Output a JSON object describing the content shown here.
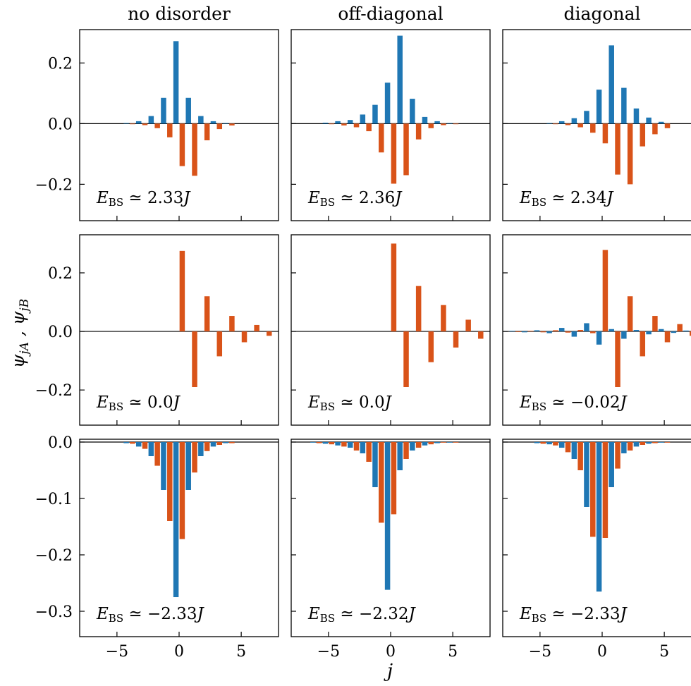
{
  "figure": {
    "ylabel": "ψ_jA , ψ_jB",
    "xlabel": "j",
    "column_titles": [
      "no disorder",
      "off-diagonal",
      "diagonal"
    ],
    "energy_prefix": "E",
    "energy_subscript": "BS",
    "energy_relation": "≃",
    "energy_unit": "J"
  },
  "colors": {
    "A": "#1f77b4",
    "B": "#d95319"
  },
  "chart_data": [
    {
      "type": "bar",
      "row": 0,
      "col": 0,
      "title": "no disorder",
      "energy": "2.33",
      "xlim": [
        -8,
        8
      ],
      "ylim": [
        -0.32,
        0.31
      ],
      "yticks": [
        "0.2",
        "0.0",
        "−0.2"
      ],
      "ytick_values": [
        0.2,
        0.0,
        -0.2
      ],
      "show_ytick_labels": true,
      "show_xtick_labels": false,
      "xticks": [
        -5,
        0,
        5
      ],
      "series": [
        {
          "name": "ψ_jA",
          "x": [
            -4,
            -3,
            -2,
            -1,
            0,
            1,
            2,
            3,
            4
          ],
          "values": [
            0.002,
            0.008,
            0.025,
            0.085,
            0.272,
            0.085,
            0.025,
            0.008,
            0.002
          ]
        },
        {
          "name": "ψ_jB",
          "x": [
            -4,
            -3,
            -2,
            -1,
            0,
            1,
            2,
            3,
            4
          ],
          "values": [
            -0.002,
            -0.005,
            -0.015,
            -0.045,
            -0.14,
            -0.172,
            -0.055,
            -0.018,
            -0.006
          ]
        }
      ]
    },
    {
      "type": "bar",
      "row": 0,
      "col": 1,
      "title": "off-diagonal",
      "energy": "2.36",
      "xlim": [
        -8,
        8
      ],
      "ylim": [
        -0.32,
        0.31
      ],
      "yticks": [
        "0.2",
        "0.0",
        "−0.2"
      ],
      "ytick_values": [
        0.2,
        0.0,
        -0.2
      ],
      "show_ytick_labels": false,
      "show_xtick_labels": false,
      "xticks": [
        -5,
        0,
        5
      ],
      "series": [
        {
          "name": "ψ_jA",
          "x": [
            -5,
            -4,
            -3,
            -2,
            -1,
            0,
            1,
            2,
            3,
            4,
            5
          ],
          "values": [
            0.003,
            0.008,
            0.012,
            0.03,
            0.062,
            0.135,
            0.29,
            0.082,
            0.022,
            0.008,
            0.002
          ]
        },
        {
          "name": "ψ_jB",
          "x": [
            -5,
            -4,
            -3,
            -2,
            -1,
            0,
            1,
            2,
            3,
            4,
            5
          ],
          "values": [
            -0.002,
            -0.006,
            -0.012,
            -0.025,
            -0.095,
            -0.198,
            -0.17,
            -0.052,
            -0.015,
            -0.005,
            -0.002
          ]
        }
      ]
    },
    {
      "type": "bar",
      "row": 0,
      "col": 2,
      "title": "diagonal",
      "energy": "2.34",
      "xlim": [
        -8,
        8
      ],
      "ylim": [
        -0.32,
        0.31
      ],
      "yticks": [
        "0.2",
        "0.0",
        "−0.2"
      ],
      "ytick_values": [
        0.2,
        0.0,
        -0.2
      ],
      "show_ytick_labels": false,
      "show_xtick_labels": false,
      "xticks": [
        -5,
        0,
        5
      ],
      "series": [
        {
          "name": "ψ_jA",
          "x": [
            -4,
            -3,
            -2,
            -1,
            0,
            1,
            2,
            3,
            4,
            5
          ],
          "values": [
            0.002,
            0.008,
            0.018,
            0.042,
            0.112,
            0.258,
            0.118,
            0.05,
            0.02,
            0.006
          ]
        },
        {
          "name": "ψ_jB",
          "x": [
            -4,
            -3,
            -2,
            -1,
            0,
            1,
            2,
            3,
            4,
            5
          ],
          "values": [
            -0.002,
            -0.005,
            -0.012,
            -0.03,
            -0.065,
            -0.168,
            -0.2,
            -0.075,
            -0.035,
            -0.015
          ]
        }
      ]
    },
    {
      "type": "bar",
      "row": 1,
      "col": 0,
      "title": "",
      "energy": "0.0",
      "xlim": [
        -8,
        8
      ],
      "ylim": [
        -0.32,
        0.33
      ],
      "yticks": [
        "0.2",
        "0.0",
        "−0.2"
      ],
      "ytick_values": [
        0.2,
        0.0,
        -0.2
      ],
      "show_ytick_labels": true,
      "show_xtick_labels": false,
      "xticks": [
        -5,
        0,
        5
      ],
      "series": [
        {
          "name": "ψ_jA",
          "x": [],
          "values": []
        },
        {
          "name": "ψ_jB",
          "x": [
            0,
            1,
            2,
            3,
            4,
            5,
            6,
            7
          ],
          "values": [
            0.275,
            -0.19,
            0.12,
            -0.085,
            0.053,
            -0.037,
            0.022,
            -0.015
          ]
        }
      ]
    },
    {
      "type": "bar",
      "row": 1,
      "col": 1,
      "title": "",
      "energy": "0.0",
      "xlim": [
        -8,
        8
      ],
      "ylim": [
        -0.32,
        0.33
      ],
      "yticks": [
        "0.2",
        "0.0",
        "−0.2"
      ],
      "ytick_values": [
        0.2,
        0.0,
        -0.2
      ],
      "show_ytick_labels": false,
      "show_xtick_labels": false,
      "xticks": [
        -5,
        0,
        5
      ],
      "series": [
        {
          "name": "ψ_jA",
          "x": [],
          "values": []
        },
        {
          "name": "ψ_jB",
          "x": [
            0,
            1,
            2,
            3,
            4,
            5,
            6,
            7
          ],
          "values": [
            0.3,
            -0.19,
            0.155,
            -0.105,
            0.09,
            -0.055,
            0.04,
            -0.025
          ]
        }
      ]
    },
    {
      "type": "bar",
      "row": 1,
      "col": 2,
      "title": "",
      "energy": "−0.02",
      "xlim": [
        -8,
        8
      ],
      "ylim": [
        -0.32,
        0.33
      ],
      "yticks": [
        "0.2",
        "0.0",
        "−0.2"
      ],
      "ytick_values": [
        0.2,
        0.0,
        -0.2
      ],
      "show_ytick_labels": false,
      "show_xtick_labels": false,
      "xticks": [
        -5,
        0,
        5
      ],
      "series": [
        {
          "name": "ψ_jA",
          "x": [
            -7,
            -6,
            -5,
            -4,
            -3,
            -2,
            -1,
            0,
            1,
            2,
            3,
            4,
            5,
            6,
            7
          ],
          "values": [
            0.002,
            -0.003,
            0.004,
            -0.006,
            0.012,
            -0.018,
            0.028,
            -0.045,
            0.008,
            -0.025,
            0.005,
            -0.01,
            0.008,
            -0.005,
            0.003
          ]
        },
        {
          "name": "ψ_jB",
          "x": [
            -7,
            -6,
            -5,
            -4,
            -3,
            -2,
            -1,
            0,
            1,
            2,
            3,
            4,
            5,
            6,
            7
          ],
          "values": [
            -0.002,
            0.002,
            -0.003,
            0.004,
            -0.004,
            0.005,
            -0.006,
            0.278,
            -0.19,
            0.12,
            -0.085,
            0.053,
            -0.037,
            0.025,
            -0.015
          ]
        }
      ]
    },
    {
      "type": "bar",
      "row": 2,
      "col": 0,
      "title": "",
      "energy": "−2.33",
      "xlim": [
        -8,
        8
      ],
      "ylim": [
        -0.345,
        0.005
      ],
      "yticks": [
        "0.0",
        "−0.1",
        "−0.2",
        "−0.3"
      ],
      "ytick_values": [
        0.0,
        -0.1,
        -0.2,
        -0.3
      ],
      "show_ytick_labels": true,
      "show_xtick_labels": true,
      "xticks": [
        -5,
        0,
        5
      ],
      "xtick_labels": [
        "−5",
        "0",
        "5"
      ],
      "series": [
        {
          "name": "ψ_jA",
          "x": [
            -4,
            -3,
            -2,
            -1,
            0,
            1,
            2,
            3,
            4
          ],
          "values": [
            -0.002,
            -0.008,
            -0.025,
            -0.085,
            -0.275,
            -0.085,
            -0.025,
            -0.008,
            -0.002
          ]
        },
        {
          "name": "ψ_jB",
          "x": [
            -4,
            -3,
            -2,
            -1,
            0,
            1,
            2,
            3,
            4
          ],
          "values": [
            -0.003,
            -0.012,
            -0.042,
            -0.14,
            -0.172,
            -0.054,
            -0.016,
            -0.005,
            -0.002
          ]
        }
      ]
    },
    {
      "type": "bar",
      "row": 2,
      "col": 1,
      "title": "",
      "energy": "−2.32",
      "xlim": [
        -8,
        8
      ],
      "ylim": [
        -0.345,
        0.005
      ],
      "yticks": [
        "0.0",
        "−0.1",
        "−0.2",
        "−0.3"
      ],
      "ytick_values": [
        0.0,
        -0.1,
        -0.2,
        -0.3
      ],
      "show_ytick_labels": false,
      "show_xtick_labels": true,
      "xticks": [
        -5,
        0,
        5
      ],
      "xtick_labels": [
        "−5",
        "0",
        "5"
      ],
      "series": [
        {
          "name": "ψ_jA",
          "x": [
            -6,
            -5,
            -4,
            -3,
            -2,
            -1,
            0,
            1,
            2,
            3,
            4,
            5
          ],
          "values": [
            -0.001,
            -0.003,
            -0.006,
            -0.01,
            -0.02,
            -0.08,
            -0.262,
            -0.05,
            -0.015,
            -0.006,
            -0.002,
            -0.001
          ]
        },
        {
          "name": "ψ_jB",
          "x": [
            -6,
            -5,
            -4,
            -3,
            -2,
            -1,
            0,
            1,
            2,
            3,
            4,
            5
          ],
          "values": [
            -0.002,
            -0.004,
            -0.008,
            -0.015,
            -0.035,
            -0.143,
            -0.128,
            -0.03,
            -0.01,
            -0.004,
            -0.001,
            -0.001
          ]
        }
      ]
    },
    {
      "type": "bar",
      "row": 2,
      "col": 2,
      "title": "",
      "energy": "−2.33",
      "xlim": [
        -8,
        8
      ],
      "ylim": [
        -0.345,
        0.005
      ],
      "yticks": [
        "0.0",
        "−0.1",
        "−0.2",
        "−0.3"
      ],
      "ytick_values": [
        0.0,
        -0.1,
        -0.2,
        -0.3
      ],
      "show_ytick_labels": false,
      "show_xtick_labels": true,
      "xticks": [
        -5,
        0,
        5
      ],
      "xtick_labels": [
        "−5",
        "0",
        "5"
      ],
      "series": [
        {
          "name": "ψ_jA",
          "x": [
            -5,
            -4,
            -3,
            -2,
            -1,
            0,
            1,
            2,
            3,
            4,
            5
          ],
          "values": [
            -0.002,
            -0.004,
            -0.01,
            -0.03,
            -0.115,
            -0.265,
            -0.08,
            -0.02,
            -0.008,
            -0.003,
            -0.001
          ]
        },
        {
          "name": "ψ_jB",
          "x": [
            -5,
            -4,
            -3,
            -2,
            -1,
            0,
            1,
            2,
            3,
            4,
            5
          ],
          "values": [
            -0.003,
            -0.006,
            -0.018,
            -0.05,
            -0.168,
            -0.17,
            -0.047,
            -0.015,
            -0.005,
            -0.002,
            -0.001
          ]
        }
      ]
    }
  ]
}
